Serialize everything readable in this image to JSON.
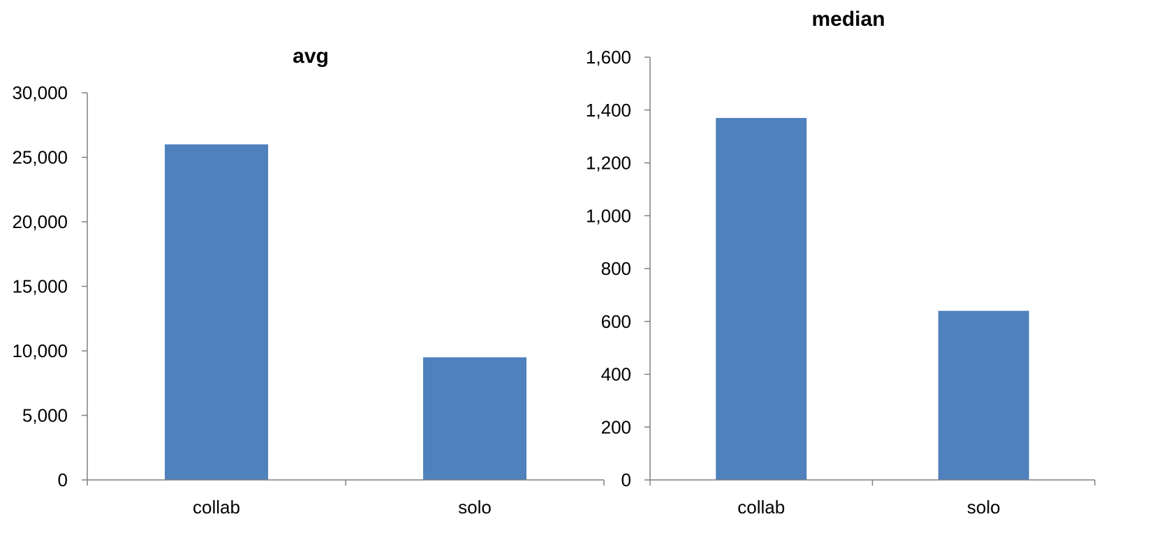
{
  "chart_data": [
    {
      "type": "bar",
      "title": "avg",
      "categories": [
        "collab",
        "solo"
      ],
      "values": [
        26000,
        9500
      ],
      "ylim": [
        0,
        30000
      ],
      "yticks": [
        0,
        5000,
        10000,
        15000,
        20000,
        25000,
        30000
      ],
      "ytick_labels": [
        "0",
        "5,000",
        "10,000",
        "15,000",
        "20,000",
        "25,000",
        "30,000"
      ],
      "grid": false,
      "legend": "none",
      "bar_color": "#4F81BD"
    },
    {
      "type": "bar",
      "title": "median",
      "categories": [
        "collab",
        "solo"
      ],
      "values": [
        1370,
        640
      ],
      "ylim": [
        0,
        1600
      ],
      "yticks": [
        0,
        200,
        400,
        600,
        800,
        1000,
        1200,
        1400,
        1600
      ],
      "ytick_labels": [
        "0",
        "200",
        "400",
        "600",
        "800",
        "1,000",
        "1,200",
        "1,400",
        "1,600"
      ],
      "grid": false,
      "legend": "none",
      "bar_color": "#4F81BD"
    }
  ]
}
